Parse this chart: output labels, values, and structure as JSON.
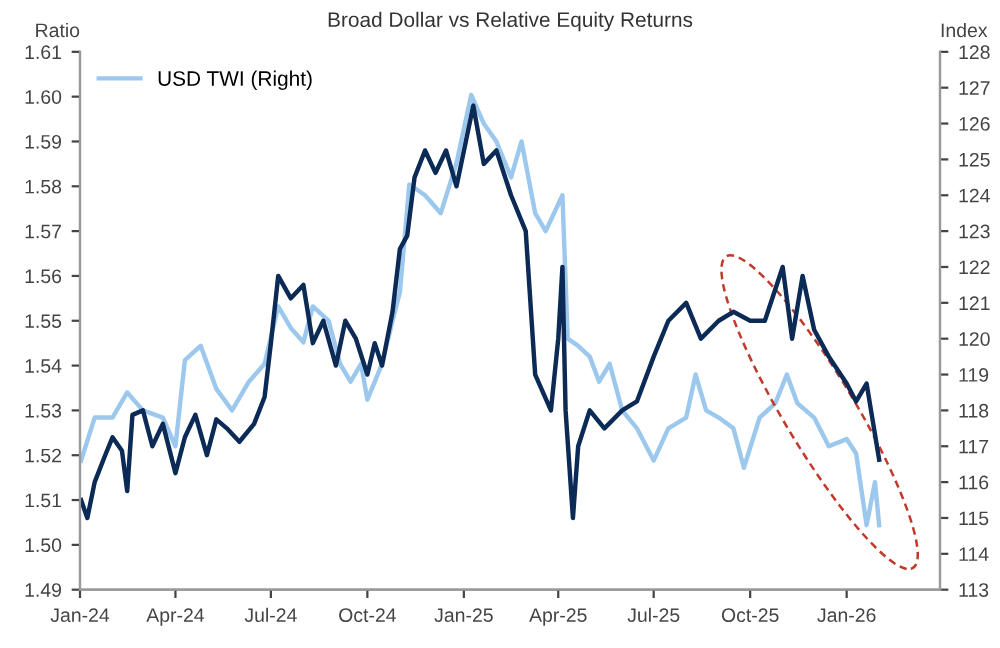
{
  "chart_data": {
    "type": "line",
    "title": "Broad Dollar vs Relative Equity Returns",
    "ylabel": "Ratio",
    "y2label": "Index",
    "xlim": [
      "2024-01-01",
      "2026-03-31"
    ],
    "xticks": [
      {
        "value": "2024-01-01",
        "label": "Jan-24"
      },
      {
        "value": "2024-04-01",
        "label": "Apr-24"
      },
      {
        "value": "2024-07-01",
        "label": "Jul-24"
      },
      {
        "value": "2024-10-01",
        "label": "Oct-24"
      },
      {
        "value": "2025-01-01",
        "label": "Jan-25"
      },
      {
        "value": "2025-04-01",
        "label": "Apr-25"
      },
      {
        "value": "2025-07-01",
        "label": "Jul-25"
      },
      {
        "value": "2025-10-01",
        "label": "Oct-25"
      },
      {
        "value": "2026-01-01",
        "label": "Jan-26"
      }
    ],
    "ylim": [
      1.49,
      1.61
    ],
    "yticks": [
      {
        "value": 1.49,
        "label": "1.49"
      },
      {
        "value": 1.5,
        "label": "1.50"
      },
      {
        "value": 1.51,
        "label": "1.51"
      },
      {
        "value": 1.52,
        "label": "1.52"
      },
      {
        "value": 1.53,
        "label": "1.53"
      },
      {
        "value": 1.54,
        "label": "1.54"
      },
      {
        "value": 1.55,
        "label": "1.55"
      },
      {
        "value": 1.56,
        "label": "1.56"
      },
      {
        "value": 1.57,
        "label": "1.57"
      },
      {
        "value": 1.58,
        "label": "1.58"
      },
      {
        "value": 1.59,
        "label": "1.59"
      },
      {
        "value": 1.6,
        "label": "1.60"
      },
      {
        "value": 1.61,
        "label": "1.61"
      }
    ],
    "y2lim": [
      113,
      128
    ],
    "y2ticks": [
      113,
      114,
      115,
      116,
      117,
      118,
      119,
      120,
      121,
      122,
      123,
      124,
      125,
      126,
      127,
      128
    ],
    "grid": false,
    "legend": "top left",
    "series": [
      {
        "color": "#0b2a56",
        "x": [
          "2024-01-02",
          "2024-01-08",
          "2024-01-15",
          "2024-01-25",
          "2024-02-01",
          "2024-02-10",
          "2024-02-15",
          "2024-02-20",
          "2024-03-01",
          "2024-03-10",
          "2024-03-20",
          "2024-04-01",
          "2024-04-10",
          "2024-04-20",
          "2024-05-01",
          "2024-05-10",
          "2024-05-20",
          "2024-06-01",
          "2024-06-15",
          "2024-06-25",
          "2024-07-01",
          "2024-07-08",
          "2024-07-20",
          "2024-08-01",
          "2024-08-10",
          "2024-08-20",
          "2024-09-01",
          "2024-09-10",
          "2024-09-20",
          "2024-10-01",
          "2024-10-08",
          "2024-10-15",
          "2024-10-25",
          "2024-11-01",
          "2024-11-08",
          "2024-11-15",
          "2024-11-25",
          "2024-12-05",
          "2024-12-15",
          "2024-12-25",
          "2025-01-10",
          "2025-01-20",
          "2025-02-01",
          "2025-02-15",
          "2025-03-01",
          "2025-03-10",
          "2025-03-25",
          "2025-04-01",
          "2025-04-05",
          "2025-04-08",
          "2025-04-15",
          "2025-04-20",
          "2025-05-01",
          "2025-05-15",
          "2025-06-01",
          "2025-06-15",
          "2025-07-01",
          "2025-07-15",
          "2025-08-01",
          "2025-08-15",
          "2025-09-01",
          "2025-09-15",
          "2025-10-01",
          "2025-10-15",
          "2025-11-01",
          "2025-11-10",
          "2025-11-20",
          "2025-12-01",
          "2025-12-15",
          "2026-01-01",
          "2026-01-10",
          "2026-01-20",
          "2026-02-01"
        ],
        "values": [
          1.51,
          1.506,
          1.514,
          1.52,
          1.524,
          1.521,
          1.512,
          1.529,
          1.53,
          1.522,
          1.527,
          1.516,
          1.524,
          1.529,
          1.52,
          1.528,
          1.526,
          1.523,
          1.527,
          1.533,
          1.545,
          1.56,
          1.555,
          1.558,
          1.545,
          1.55,
          1.54,
          1.55,
          1.546,
          1.538,
          1.545,
          1.54,
          1.552,
          1.566,
          1.569,
          1.582,
          1.588,
          1.583,
          1.588,
          1.58,
          1.598,
          1.585,
          1.588,
          1.578,
          1.57,
          1.538,
          1.53,
          1.546,
          1.562,
          1.53,
          1.506,
          1.522,
          1.53,
          1.526,
          1.53,
          1.532,
          1.542,
          1.55,
          1.554,
          1.546,
          1.55,
          1.552,
          1.55,
          1.55,
          1.562,
          1.546,
          1.56,
          1.548,
          1.542,
          1.536,
          1.532,
          1.536,
          1.519
        ]
      },
      {
        "name": "USD TWI (Right)",
        "color": "#9dc8ee",
        "axis": "y2",
        "x": [
          "2024-01-02",
          "2024-01-15",
          "2024-02-01",
          "2024-02-15",
          "2024-03-01",
          "2024-03-20",
          "2024-04-01",
          "2024-04-10",
          "2024-04-25",
          "2024-05-10",
          "2024-05-25",
          "2024-06-10",
          "2024-06-25",
          "2024-07-08",
          "2024-07-20",
          "2024-08-01",
          "2024-08-10",
          "2024-08-25",
          "2024-09-05",
          "2024-09-15",
          "2024-09-25",
          "2024-10-01",
          "2024-10-15",
          "2024-10-25",
          "2024-11-01",
          "2024-11-10",
          "2024-11-25",
          "2024-12-10",
          "2024-12-25",
          "2025-01-08",
          "2025-01-20",
          "2025-02-01",
          "2025-02-15",
          "2025-02-25",
          "2025-03-10",
          "2025-03-20",
          "2025-04-05",
          "2025-04-10",
          "2025-04-20",
          "2025-05-01",
          "2025-05-10",
          "2025-05-20",
          "2025-06-01",
          "2025-06-15",
          "2025-07-01",
          "2025-07-15",
          "2025-08-01",
          "2025-08-10",
          "2025-08-20",
          "2025-09-01",
          "2025-09-15",
          "2025-09-25",
          "2025-10-10",
          "2025-10-25",
          "2025-11-05",
          "2025-11-15",
          "2025-12-01",
          "2025-12-15",
          "2026-01-01",
          "2026-01-10",
          "2026-01-20",
          "2026-01-28",
          "2026-02-01"
        ],
        "values": [
          116.6,
          117.8,
          117.8,
          118.5,
          118.0,
          117.8,
          117.0,
          119.4,
          119.8,
          118.6,
          118.0,
          118.8,
          119.3,
          120.9,
          120.3,
          119.9,
          120.9,
          120.5,
          119.3,
          118.8,
          119.3,
          118.3,
          119.3,
          120.5,
          121.3,
          124.3,
          124.0,
          123.5,
          124.9,
          126.8,
          126.0,
          125.5,
          124.5,
          125.5,
          123.5,
          123.0,
          124.0,
          120.0,
          119.8,
          119.5,
          118.8,
          119.3,
          118.0,
          117.5,
          116.6,
          117.5,
          117.8,
          119.0,
          118.0,
          117.8,
          117.5,
          116.4,
          117.8,
          118.2,
          119.0,
          118.2,
          117.8,
          117.0,
          117.2,
          116.8,
          114.8,
          116.0,
          114.8
        ]
      }
    ]
  }
}
